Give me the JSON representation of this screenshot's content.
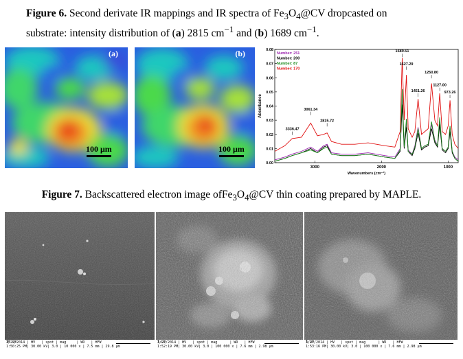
{
  "figure6": {
    "label": "Figure 6.",
    "text1": " Second derivate IR mappings and IR spectra of Fe",
    "sub3": "3",
    "o": "O",
    "sub4": "4",
    "text2": "@CV dropcasted on",
    "line2a": "substrate: intensity distribution of (",
    "a": "a",
    "line2b": ") 2815 cm",
    "sup1": "−1",
    "line2c": " and (",
    "b": "b",
    "line2d": ") 1689 cm",
    "sup2": "−1",
    "line2e": "."
  },
  "maps": [
    {
      "label": "(a)",
      "scale": "100 μm"
    },
    {
      "label": "(b)",
      "scale": "100 μm"
    }
  ],
  "chart_data": {
    "type": "line",
    "xlabel": "Wavenumbers (cm⁻¹)",
    "ylabel": "Absorbance",
    "xlim": [
      3600,
      850
    ],
    "ylim": [
      0,
      0.08
    ],
    "x_ticks": [
      "3000",
      "2000",
      "1000"
    ],
    "y_ticks": [
      "0.00",
      "0.01",
      "0.02",
      "0.03",
      "0.04",
      "0.05",
      "0.06",
      "0.07",
      "0.08"
    ],
    "legend": [
      {
        "name": "Number: 251",
        "color": "#9c27b0"
      },
      {
        "name": "Number: 200",
        "color": "#000000"
      },
      {
        "name": "Number: 87",
        "color": "#1b8a1b"
      },
      {
        "name": "Number: 170",
        "color": "#e01010"
      }
    ],
    "annotations": [
      {
        "x": 3336.47,
        "y": 0.022,
        "label": "3336.47"
      },
      {
        "x": 3061.34,
        "y": 0.036,
        "label": "3061.34"
      },
      {
        "x": 2815.72,
        "y": 0.028,
        "label": "2815.72"
      },
      {
        "x": 1689.51,
        "y": 0.077,
        "label": "1689.51"
      },
      {
        "x": 1627.29,
        "y": 0.068,
        "label": "1627.29"
      },
      {
        "x": 1451.26,
        "y": 0.049,
        "label": "1451.26"
      },
      {
        "x": 1250.8,
        "y": 0.062,
        "label": "1250.80"
      },
      {
        "x": 1127.0,
        "y": 0.053,
        "label": "1127.00"
      },
      {
        "x": 973.26,
        "y": 0.048,
        "label": "973.26"
      }
    ],
    "series": [
      {
        "color": "#9c27b0",
        "x": [
          3600,
          3450,
          3340,
          3200,
          3061,
          2960,
          2870,
          2815,
          2750,
          2600,
          2400,
          2200,
          1950,
          1800,
          1720,
          1689,
          1660,
          1627,
          1600,
          1540,
          1500,
          1451,
          1400,
          1350,
          1300,
          1250,
          1200,
          1160,
          1127,
          1090,
          1040,
          1000,
          973,
          940,
          900,
          850
        ],
        "y": [
          0.002,
          0.004,
          0.006,
          0.008,
          0.011,
          0.008,
          0.012,
          0.013,
          0.007,
          0.006,
          0.006,
          0.007,
          0.005,
          0.004,
          0.01,
          0.045,
          0.012,
          0.028,
          0.009,
          0.006,
          0.012,
          0.025,
          0.01,
          0.012,
          0.013,
          0.027,
          0.016,
          0.012,
          0.03,
          0.01,
          0.008,
          0.011,
          0.025,
          0.008,
          0.004,
          0.002
        ]
      },
      {
        "color": "#000000",
        "x": [
          3600,
          3450,
          3340,
          3200,
          3061,
          2960,
          2870,
          2815,
          2750,
          2600,
          2400,
          2200,
          1950,
          1800,
          1720,
          1689,
          1660,
          1627,
          1600,
          1540,
          1500,
          1451,
          1400,
          1350,
          1300,
          1250,
          1200,
          1160,
          1127,
          1090,
          1040,
          1000,
          973,
          940,
          900,
          850
        ],
        "y": [
          0.001,
          0.003,
          0.005,
          0.007,
          0.01,
          0.007,
          0.011,
          0.012,
          0.006,
          0.005,
          0.005,
          0.006,
          0.004,
          0.003,
          0.008,
          0.041,
          0.01,
          0.025,
          0.008,
          0.005,
          0.01,
          0.021,
          0.009,
          0.011,
          0.012,
          0.024,
          0.014,
          0.011,
          0.027,
          0.009,
          0.007,
          0.01,
          0.022,
          0.007,
          0.003,
          0.001
        ]
      },
      {
        "color": "#1b8a1b",
        "x": [
          3600,
          3450,
          3340,
          3200,
          3061,
          2960,
          2870,
          2815,
          2750,
          2600,
          2400,
          2200,
          1950,
          1800,
          1720,
          1689,
          1660,
          1627,
          1600,
          1540,
          1500,
          1451,
          1400,
          1350,
          1300,
          1250,
          1200,
          1160,
          1127,
          1090,
          1040,
          1000,
          973,
          940,
          900,
          850
        ],
        "y": [
          0.001,
          0.003,
          0.005,
          0.007,
          0.009,
          0.007,
          0.01,
          0.011,
          0.006,
          0.005,
          0.005,
          0.006,
          0.004,
          0.003,
          0.009,
          0.052,
          0.011,
          0.031,
          0.008,
          0.006,
          0.011,
          0.024,
          0.01,
          0.012,
          0.013,
          0.029,
          0.015,
          0.012,
          0.032,
          0.01,
          0.008,
          0.011,
          0.026,
          0.008,
          0.003,
          0.001
        ]
      },
      {
        "color": "#e01010",
        "x": [
          3600,
          3450,
          3340,
          3200,
          3061,
          2960,
          2870,
          2815,
          2750,
          2600,
          2400,
          2200,
          1950,
          1800,
          1720,
          1689,
          1660,
          1627,
          1600,
          1540,
          1500,
          1451,
          1400,
          1350,
          1300,
          1250,
          1200,
          1160,
          1127,
          1090,
          1040,
          1000,
          973,
          940,
          900,
          850
        ],
        "y": [
          0.008,
          0.012,
          0.017,
          0.018,
          0.028,
          0.019,
          0.02,
          0.021,
          0.015,
          0.013,
          0.013,
          0.014,
          0.012,
          0.011,
          0.022,
          0.074,
          0.03,
          0.062,
          0.024,
          0.018,
          0.022,
          0.045,
          0.02,
          0.022,
          0.024,
          0.056,
          0.03,
          0.026,
          0.049,
          0.022,
          0.02,
          0.026,
          0.044,
          0.02,
          0.013,
          0.01
        ]
      }
    ]
  },
  "figure7": {
    "label": "Figure 7.",
    "text1": " Backscattered electron image ofFe",
    "sub3": "3",
    "o": "O",
    "sub4": "4",
    "text2": "@CV thin coating prepared by MAPLE."
  },
  "sem": [
    {
      "row1": "3/27/2014 | HV   | spot | mag     | WD   | HFW",
      "row2": "1:50:25 PM| 30.00 kV| 3.0 | 10 000 x | 7.5 mm | 29.8 μm",
      "scale": "10 μm"
    },
    {
      "row1": "3/27/2014 | HV   | spot | mag      | WD   | HFW",
      "row2": "1:52:19 PM| 30.00 kV| 3.0 | 100 000 x | 7.6 mm | 2.98 μm",
      "scale": "1 μm"
    },
    {
      "row1": "3/27/2014 | HV   | spot | mag      | WD   | HFW",
      "row2": "1:53:16 PM| 30.00 kV| 3.0 | 100 000 x | 7.6 mm | 2.98 μm",
      "scale": "1 μm"
    }
  ]
}
